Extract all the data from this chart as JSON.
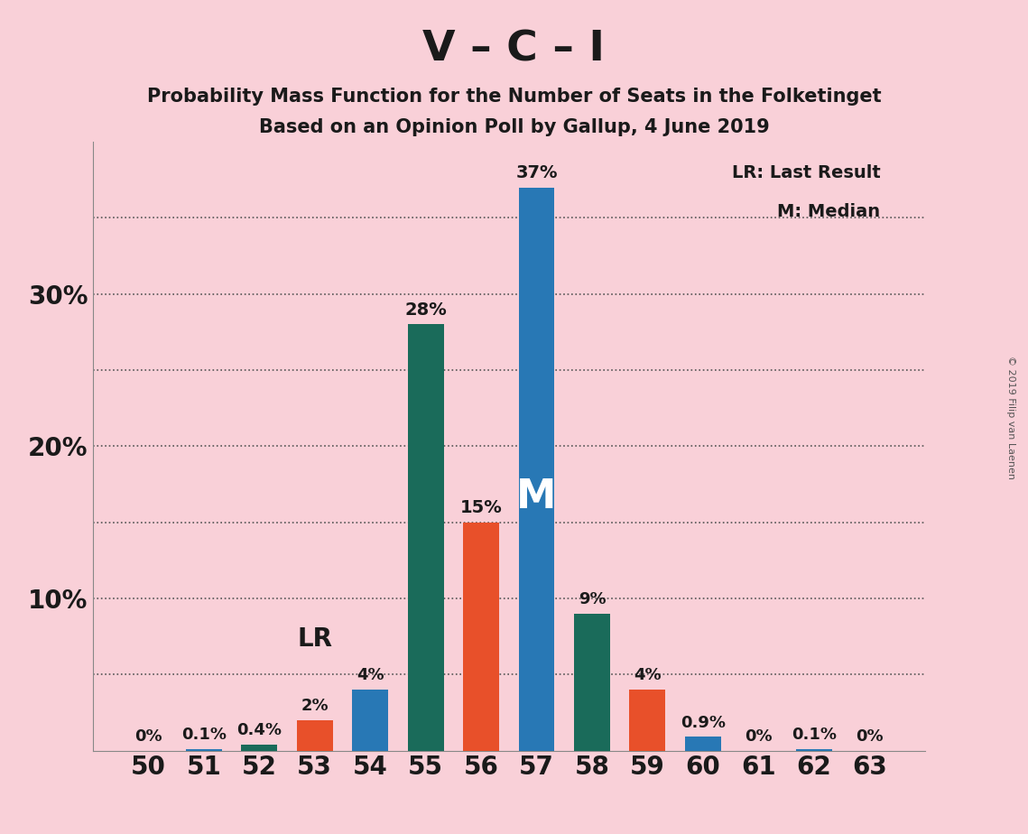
{
  "title": "V – C – I",
  "subtitle1": "Probability Mass Function for the Number of Seats in the Folketinget",
  "subtitle2": "Based on an Opinion Poll by Gallup, 4 June 2019",
  "copyright": "© 2019 Filip van Laenen",
  "legend_lr": "LR: Last Result",
  "legend_m": "M: Median",
  "x_labels": [
    50,
    51,
    52,
    53,
    54,
    55,
    56,
    57,
    58,
    59,
    60,
    61,
    62,
    63
  ],
  "bar_values": [
    0.0,
    0.1,
    0.4,
    2.0,
    4.0,
    28.0,
    15.0,
    37.0,
    9.0,
    4.0,
    0.9,
    0.0,
    0.1,
    0.0
  ],
  "bar_colors": [
    "#2878b5",
    "#2878b5",
    "#1a6b5a",
    "#e8502a",
    "#2878b5",
    "#1a6b5a",
    "#e8502a",
    "#2878b5",
    "#1a6b5a",
    "#e8502a",
    "#2878b5",
    "#2878b5",
    "#2878b5",
    "#2878b5"
  ],
  "bar_label_texts": [
    "0%",
    "0.1%",
    "0.4%",
    "2%",
    "4%",
    "28%",
    "15%",
    "37%",
    "9%",
    "4%",
    "0.9%",
    "0%",
    "0.1%",
    "0%"
  ],
  "lr_idx": 3,
  "median_idx": 7,
  "blue_color": "#2878b5",
  "orange_color": "#e8502a",
  "green_color": "#1a6b5a",
  "background_color": "#f9d0d8",
  "ylim": [
    0,
    40
  ],
  "ytick_positions": [
    0,
    10,
    20,
    30
  ],
  "ytick_labels": [
    "",
    "10%",
    "20%",
    "30%"
  ],
  "grid_positions": [
    5,
    10,
    15,
    20,
    25,
    30,
    35
  ],
  "bar_width": 0.65
}
